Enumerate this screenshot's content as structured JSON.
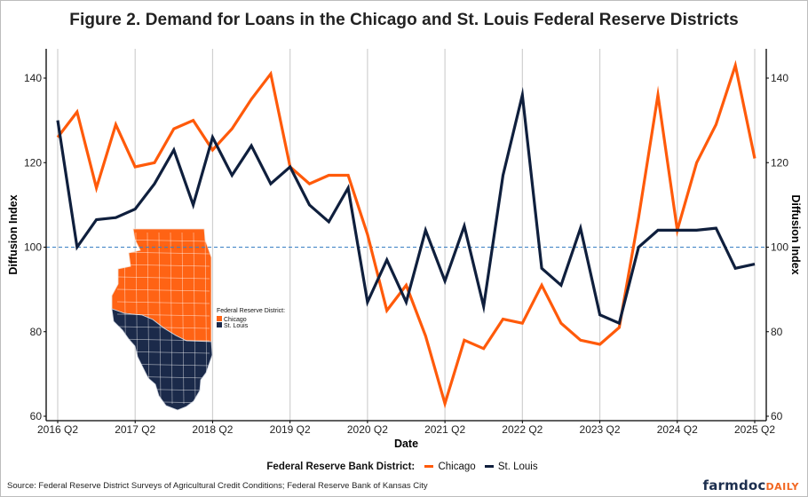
{
  "figure": {
    "title": "Figure 2. Demand for Loans in the Chicago and St. Louis Federal Reserve Districts",
    "legend_title": "Federal Reserve Bank District:",
    "source": "Source: Federal Reserve District Surveys of Agricultural Credit Conditions; Federal Reserve Bank of Kansas City",
    "logo_main": "farmdoc",
    "logo_accent": "DAILY"
  },
  "inset_map": {
    "legend_title": "Federal Reserve District:",
    "items": [
      {
        "label": "Chicago",
        "color": "#ff6314"
      },
      {
        "label": "St. Louis",
        "color": "#1b2a4a"
      }
    ]
  },
  "chart_data": {
    "type": "line",
    "title": "Figure 2. Demand for Loans in the Chicago and St. Louis Federal Reserve Districts",
    "xlabel": "Date",
    "ylabel": "Diffusion Index",
    "ylabel_right": "Diffusion Index",
    "ylim": [
      60,
      145
    ],
    "yticks": [
      60,
      80,
      100,
      120,
      140
    ],
    "xticks": [
      "2016 Q2",
      "2017 Q2",
      "2018 Q2",
      "2019 Q2",
      "2020 Q2",
      "2021 Q2",
      "2022 Q2",
      "2023 Q2",
      "2024 Q2",
      "2025 Q2"
    ],
    "reference_line": 100,
    "grid": "vertical at x ticks",
    "legend_position": "bottom",
    "x": [
      "2016 Q2",
      "2016 Q3",
      "2016 Q4",
      "2017 Q1",
      "2017 Q2",
      "2017 Q3",
      "2017 Q4",
      "2018 Q1",
      "2018 Q2",
      "2018 Q3",
      "2018 Q4",
      "2019 Q1",
      "2019 Q2",
      "2019 Q3",
      "2019 Q4",
      "2020 Q1",
      "2020 Q2",
      "2020 Q3",
      "2020 Q4",
      "2021 Q1",
      "2021 Q2",
      "2021 Q3",
      "2021 Q4",
      "2022 Q1",
      "2022 Q2",
      "2022 Q3",
      "2022 Q4",
      "2023 Q1",
      "2023 Q2",
      "2023 Q3",
      "2023 Q4",
      "2024 Q1",
      "2024 Q2",
      "2024 Q3",
      "2024 Q4",
      "2025 Q1",
      "2025 Q2"
    ],
    "series": [
      {
        "name": "Chicago",
        "color": "#ff5a0a",
        "values": [
          126,
          132,
          114,
          129,
          119,
          120,
          128,
          130,
          123,
          128,
          135,
          141,
          119,
          115,
          117,
          117,
          103,
          85,
          91,
          79,
          63,
          78,
          76,
          83,
          82,
          91,
          82,
          78,
          77,
          81,
          107,
          136,
          104,
          120,
          129,
          143,
          121
        ]
      },
      {
        "name": "St. Louis",
        "color": "#0f1f3d",
        "values": [
          130,
          100,
          106.5,
          107,
          109,
          115,
          123,
          110,
          126,
          117,
          124,
          115,
          119,
          110,
          106,
          114,
          87,
          97,
          87,
          104,
          92,
          105,
          86,
          117,
          136,
          95,
          91,
          104.5,
          84,
          82,
          100,
          104,
          104,
          104,
          104.5,
          95,
          96
        ]
      }
    ]
  }
}
